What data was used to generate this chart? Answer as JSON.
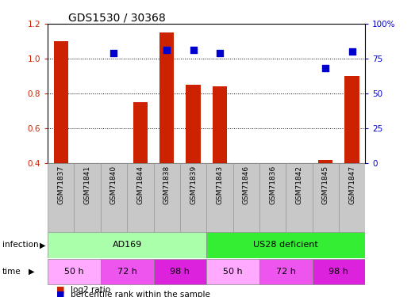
{
  "title": "GDS1530 / 30368",
  "samples": [
    "GSM71837",
    "GSM71841",
    "GSM71840",
    "GSM71844",
    "GSM71838",
    "GSM71839",
    "GSM71843",
    "GSM71846",
    "GSM71836",
    "GSM71842",
    "GSM71845",
    "GSM71847"
  ],
  "log2_ratio": [
    1.1,
    null,
    null,
    0.75,
    1.15,
    0.85,
    0.84,
    null,
    null,
    null,
    0.42,
    0.9
  ],
  "pct_rank_right": [
    null,
    null,
    79,
    null,
    81,
    81,
    79,
    null,
    null,
    null,
    68,
    80
  ],
  "infection_groups": [
    {
      "label": "AD169",
      "start": 0,
      "end": 6,
      "color": "#AAFFAA"
    },
    {
      "label": "US28 deficient",
      "start": 6,
      "end": 12,
      "color": "#33EE33"
    }
  ],
  "time_groups": [
    {
      "label": "50 h",
      "start": 0,
      "end": 2,
      "color": "#FFAAFF"
    },
    {
      "label": "72 h",
      "start": 2,
      "end": 4,
      "color": "#EE55EE"
    },
    {
      "label": "98 h",
      "start": 4,
      "end": 6,
      "color": "#DD22DD"
    },
    {
      "label": "50 h",
      "start": 6,
      "end": 8,
      "color": "#FFAAFF"
    },
    {
      "label": "72 h",
      "start": 8,
      "end": 10,
      "color": "#EE55EE"
    },
    {
      "label": "98 h",
      "start": 10,
      "end": 12,
      "color": "#DD22DD"
    }
  ],
  "ylim_left": [
    0.4,
    1.2
  ],
  "ylim_right": [
    0,
    100
  ],
  "yticks_left": [
    0.4,
    0.6,
    0.8,
    1.0,
    1.2
  ],
  "yticks_right": [
    0,
    25,
    50,
    75,
    100
  ],
  "bar_color": "#CC2200",
  "dot_color": "#0000CC",
  "bar_bottom": 0.4,
  "bar_width": 0.55,
  "dot_size": 40,
  "bg_color": "#CCCCCC",
  "sample_bg": "#C8C8C8"
}
